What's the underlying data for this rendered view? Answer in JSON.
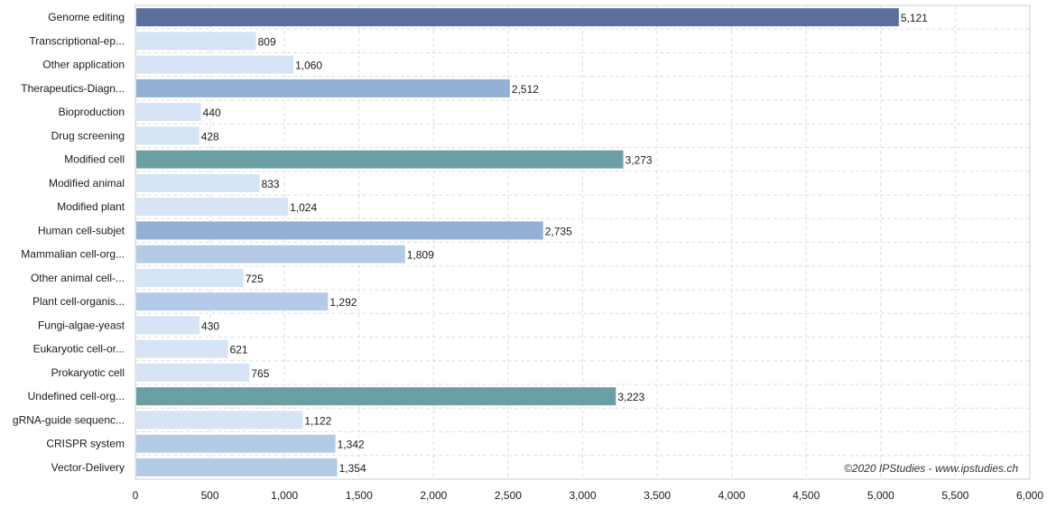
{
  "chart_data": {
    "type": "bar",
    "orientation": "horizontal",
    "categories": [
      "Genome editing",
      "Transcriptional-ep...",
      "Other application",
      "Therapeutics-Diagn...",
      "Bioproduction",
      "Drug screening",
      "Modified cell",
      "Modified animal",
      "Modified plant",
      "Human cell-subjet",
      "Mammalian cell-org...",
      "Other animal cell-...",
      "Plant cell-organis...",
      "Fungi-algae-yeast",
      "Eukaryotic cell-or...",
      "Prokaryotic cell",
      "Undefined cell-org...",
      "gRNA-guide sequenc...",
      "CRISPR system",
      "Vector-Delivery"
    ],
    "values": [
      5121,
      809,
      1060,
      2512,
      440,
      428,
      3273,
      833,
      1024,
      2735,
      1809,
      725,
      1292,
      430,
      621,
      765,
      3223,
      1122,
      1342,
      1354
    ],
    "value_labels": [
      "5,121",
      "809",
      "1,060",
      "2,512",
      "440",
      "428",
      "3,273",
      "833",
      "1,024",
      "2,735",
      "1,809",
      "725",
      "1,292",
      "430",
      "621",
      "765",
      "3,223",
      "1,122",
      "1,342",
      "1,354"
    ],
    "bar_colors": [
      "#5a6f9b",
      "#d6e4f5",
      "#d6e4f5",
      "#93afd4",
      "#d6e4f5",
      "#d6e4f5",
      "#6c9fa4",
      "#d6e4f5",
      "#d6e4f5",
      "#93afd4",
      "#b4cbe8",
      "#d6e4f5",
      "#b4cbe8",
      "#d6e4f5",
      "#d6e4f5",
      "#d6e4f5",
      "#6c9fa4",
      "#d6e4f5",
      "#b4cbe8",
      "#b4cbe8"
    ],
    "xlim": [
      0,
      6000
    ],
    "x_ticks": [
      0,
      500,
      1000,
      1500,
      2000,
      2500,
      3000,
      3500,
      4000,
      4500,
      5000,
      5500,
      6000
    ],
    "x_tick_labels": [
      "0",
      "500",
      "1,000",
      "1,500",
      "2,000",
      "2,500",
      "3,000",
      "3,500",
      "4,000",
      "4,500",
      "5,000",
      "5,500",
      "6,000"
    ],
    "grid": true,
    "title": "",
    "xlabel": "",
    "ylabel": ""
  },
  "watermark": "©2020 IPStudies - www.ipstudies.ch"
}
